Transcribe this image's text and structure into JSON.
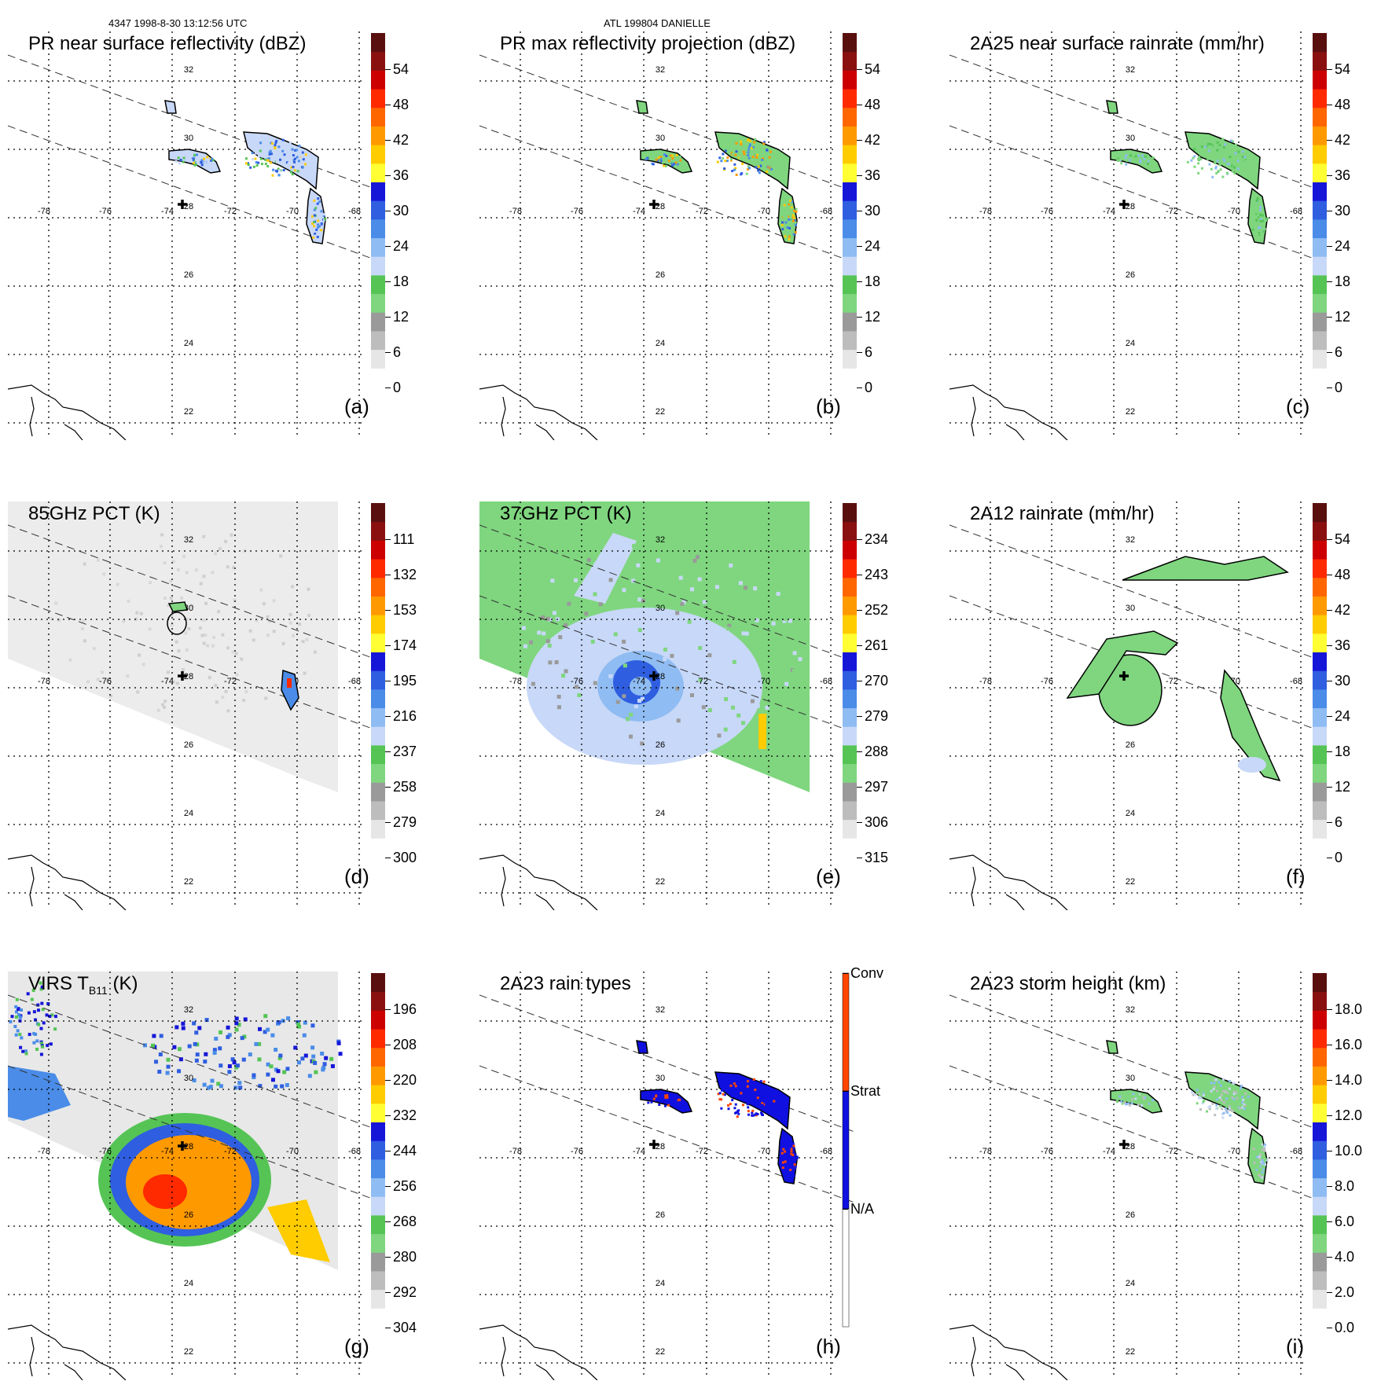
{
  "header": {
    "orbit_info": "4347 1998-8-30 13:12:56 UTC",
    "storm_info": "ATL 199804 DANIELLE"
  },
  "lat_labels": [
    "32",
    "30",
    "28",
    "26",
    "24",
    "22"
  ],
  "lon_labels": [
    "-78",
    "-76",
    "-74",
    "-72",
    "-70",
    "-68"
  ],
  "panels": [
    {
      "id": "a",
      "title": "PR near surface reflectivity (dBZ)",
      "label": "(a)",
      "ticks": [
        "54",
        "48",
        "42",
        "36",
        "30",
        "24",
        "18",
        "12",
        "6",
        "0"
      ]
    },
    {
      "id": "b",
      "title": "PR max reflectivity projection (dBZ)",
      "label": "(b)",
      "ticks": [
        "54",
        "48",
        "42",
        "36",
        "30",
        "24",
        "18",
        "12",
        "6",
        "0"
      ]
    },
    {
      "id": "c",
      "title": "2A25 near surface rainrate (mm/hr)",
      "label": "(c)",
      "ticks": [
        "54",
        "48",
        "42",
        "36",
        "30",
        "24",
        "18",
        "12",
        "6",
        "0"
      ]
    },
    {
      "id": "d",
      "title": "85GHz PCT (K)",
      "label": "(d)",
      "ticks": [
        "111",
        "132",
        "153",
        "174",
        "195",
        "216",
        "237",
        "258",
        "279",
        "300"
      ]
    },
    {
      "id": "e",
      "title": "37GHz PCT (K)",
      "label": "(e)",
      "ticks": [
        "234",
        "243",
        "252",
        "261",
        "270",
        "279",
        "288",
        "297",
        "306",
        "315"
      ]
    },
    {
      "id": "f",
      "title": "2A12 rainrate (mm/hr)",
      "label": "(f)",
      "ticks": [
        "54",
        "48",
        "42",
        "36",
        "30",
        "24",
        "18",
        "12",
        "6",
        "0"
      ]
    },
    {
      "id": "g",
      "title_main": "VIRS T",
      "title_sub": "B11",
      "title_unit": " (K)",
      "label": "(g)",
      "ticks": [
        "196",
        "208",
        "220",
        "232",
        "244",
        "256",
        "268",
        "280",
        "292",
        "304"
      ]
    },
    {
      "id": "h",
      "title": "2A23 rain types",
      "label": "(h)",
      "ticks": [
        "Conv",
        "Strat",
        "N/A"
      ]
    },
    {
      "id": "i",
      "title": "2A23 storm height (km)",
      "label": "(i)",
      "ticks": [
        "18.0",
        "16.0",
        "14.0",
        "12.0",
        "10.0",
        "8.0",
        "6.0",
        "4.0",
        "2.0",
        "0.0"
      ]
    }
  ],
  "colors": {
    "scale": [
      "#ffffff",
      "#e6e6e6",
      "#bdbdbd",
      "#9a9a9a",
      "#7fd67f",
      "#55c455",
      "#c8d8f8",
      "#8fbcf2",
      "#4a8ce8",
      "#2f5ee0",
      "#1616d8",
      "#ffff33",
      "#ffcc00",
      "#ff9900",
      "#ff6600",
      "#ff2a00",
      "#cc0000",
      "#8a1010",
      "#5a0f0f"
    ],
    "raintype": [
      "#ffffff",
      "#1010e0",
      "#ff4500"
    ]
  }
}
